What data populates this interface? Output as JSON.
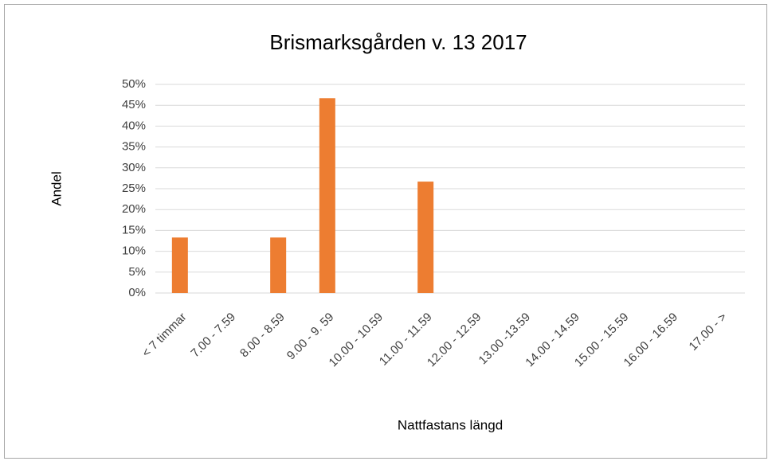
{
  "chart_data": {
    "type": "bar",
    "title": "Brismarksgården v. 13 2017",
    "x_label": "Nattfastans längd",
    "y_label": "Andel",
    "categories": [
      "< 7 timmar",
      "7.00 - 7.59",
      "8.00 - 8.59",
      "9.00 - 9. 59",
      "10.00 - 10.59",
      "11.00 - 11.59",
      "12.00  - 12.59",
      "13.00 -13.59",
      "14.00 - 14.59",
      "15.00 - 15.59",
      "16.00 - 16.59",
      "17.00 - >"
    ],
    "values": [
      13.3,
      0,
      13.3,
      46.7,
      0,
      26.7,
      0,
      0,
      0,
      0,
      0,
      0
    ],
    "color": "#ed7d31",
    "ylim": [
      0,
      50
    ],
    "yticks": [
      {
        "value": 0,
        "label": "0%"
      },
      {
        "value": 5,
        "label": "5%"
      },
      {
        "value": 10,
        "label": "10%"
      },
      {
        "value": 15,
        "label": "15%"
      },
      {
        "value": 20,
        "label": "20%"
      },
      {
        "value": 25,
        "label": "25%"
      },
      {
        "value": 30,
        "label": "30%"
      },
      {
        "value": 35,
        "label": "35%"
      },
      {
        "value": 40,
        "label": "40%"
      },
      {
        "value": 45,
        "label": "45%"
      },
      {
        "value": 50,
        "label": "50%"
      }
    ],
    "grid": true
  }
}
